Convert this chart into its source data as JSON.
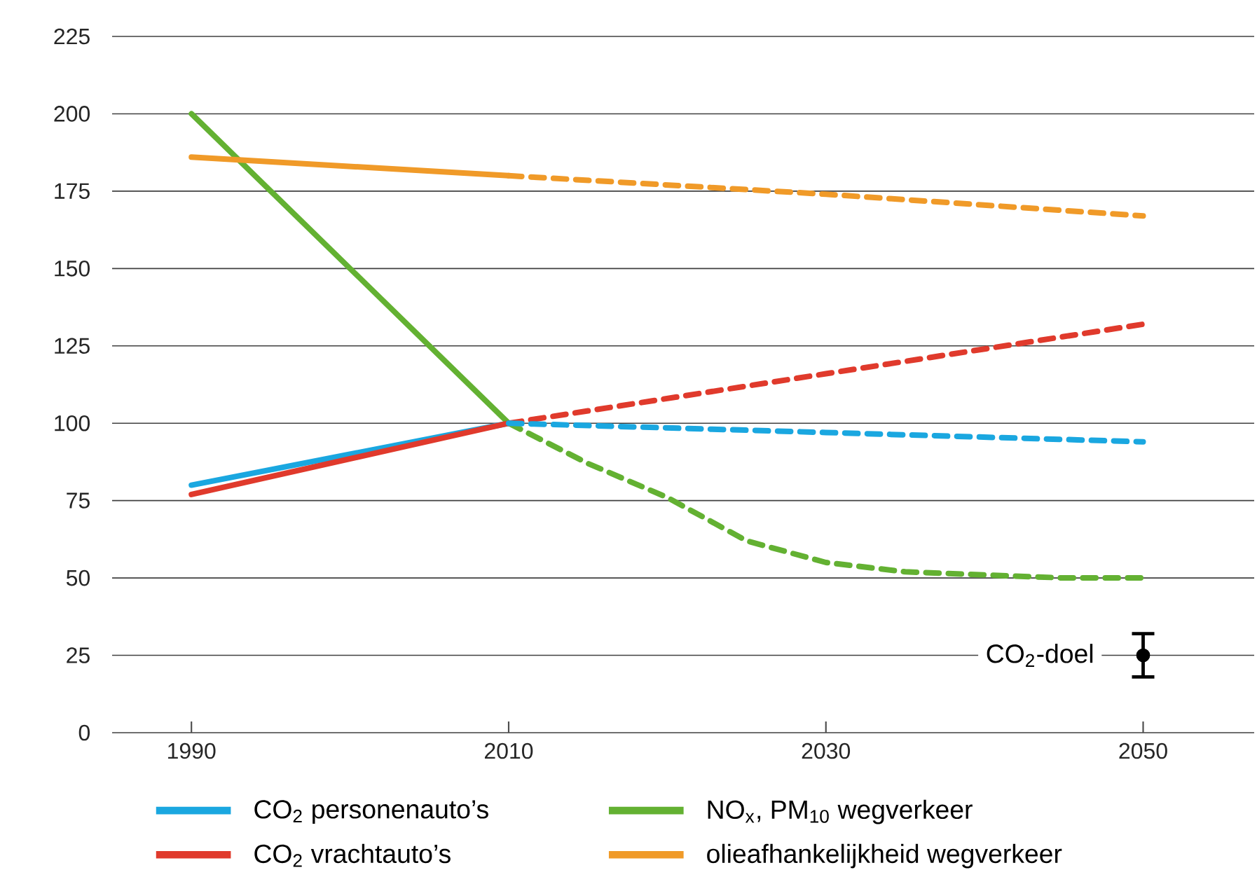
{
  "chart_data": {
    "type": "line",
    "xlim": [
      1985,
      2057
    ],
    "ylim": [
      0,
      225
    ],
    "xticks": [
      1990,
      2010,
      2030,
      2050
    ],
    "yticks": [
      0,
      25,
      50,
      75,
      100,
      125,
      150,
      175,
      200,
      225
    ],
    "grid": "y",
    "legend": "bottom",
    "series": [
      {
        "name": "CO$_{2}$ personenauto’s",
        "color": "#1aa7e0",
        "x": [
          1990,
          2010
        ],
        "values": [
          80,
          100
        ],
        "line_style": "solid"
      },
      {
        "name": "NO$_{x}$, PM$_{10}$ wegverkeer",
        "color": "#63b132",
        "x": [
          1990,
          2010
        ],
        "values": [
          200,
          100
        ],
        "line_style": "solid"
      },
      {
        "name": "CO$_{2}$ vrachtauto’s",
        "color": "#e03a2c",
        "x": [
          1990,
          2010
        ],
        "values": [
          77,
          100
        ],
        "line_style": "solid"
      },
      {
        "name": "olieafhankelijkheid wegverkeer",
        "color": "#f09a28",
        "x": [
          1990,
          2010
        ],
        "values": [
          186,
          180
        ],
        "line_style": "solid"
      },
      {
        "color": "#63b132",
        "x": [
          2010,
          2015,
          2020,
          2025,
          2030,
          2035,
          2040,
          2045,
          2050
        ],
        "values": [
          100,
          87,
          76,
          62,
          55,
          52,
          51,
          50,
          50
        ],
        "line_style": "dashed"
      },
      {
        "color": "#e03a2c",
        "x": [
          2010,
          2030,
          2050
        ],
        "values": [
          100,
          116,
          132
        ],
        "line_style": "dashed"
      },
      {
        "color": "#f09a28",
        "x": [
          2010,
          2030,
          2050
        ],
        "values": [
          180,
          174,
          167
        ],
        "line_style": "dashed"
      },
      {
        "color": "#1aa7e0",
        "x": [
          2010,
          2030,
          2050
        ],
        "values": [
          100,
          97,
          94
        ],
        "line_style": "dashed"
      },
      {
        "type": "scatter",
        "name": "CO$_{2}$-doel",
        "color": "#000000",
        "x": [
          2050
        ],
        "values": [
          25
        ],
        "errors": [
          [
            18,
            32
          ]
        ]
      }
    ]
  }
}
